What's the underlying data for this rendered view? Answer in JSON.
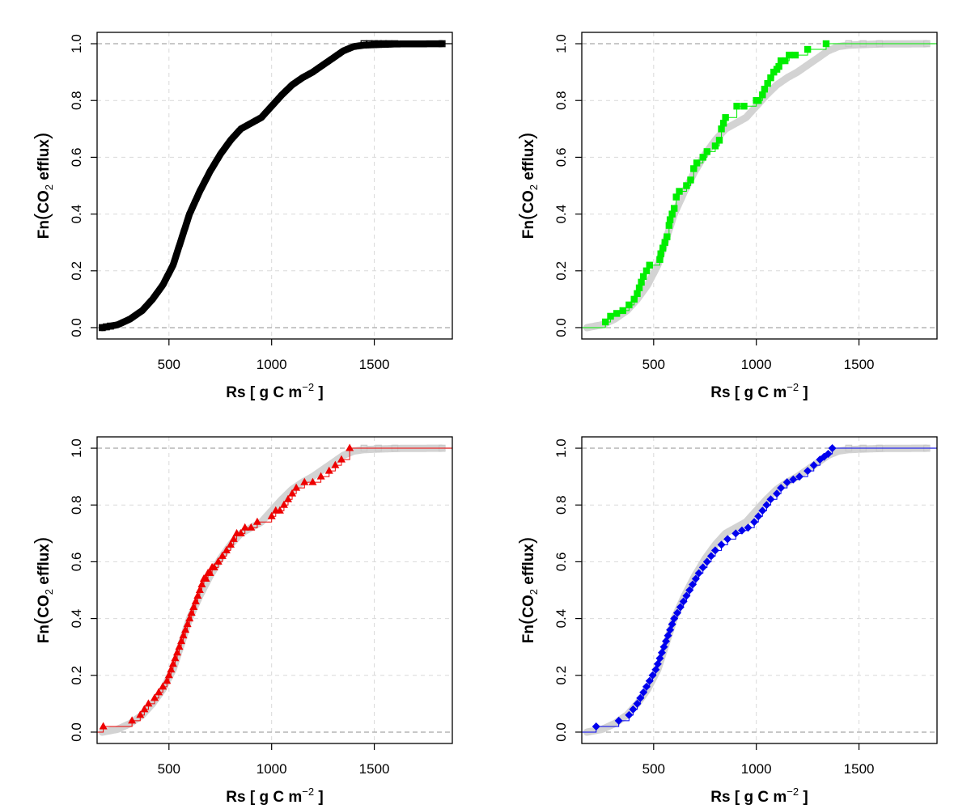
{
  "chart_data": [
    {
      "type": "step",
      "marker": "open-square",
      "colors": {
        "primary": "#000000",
        "background": "#d3d3d3"
      },
      "show_background_ecdf": false,
      "xlim": [
        150,
        1880
      ],
      "ylim": [
        0,
        1
      ],
      "xticks": [
        500,
        1000,
        1500
      ],
      "yticks": [
        0.0,
        0.2,
        0.4,
        0.6,
        0.8,
        1.0
      ],
      "xtick_labels": [
        "500",
        "1000",
        "1500"
      ],
      "ytick_labels": [
        "0.0",
        "0.2",
        "0.4",
        "0.6",
        "0.8",
        "1.0"
      ],
      "xlabel": {
        "prefix": "Rs [ g C m",
        "exponent": "−2",
        "suffix": " ]"
      },
      "ylabel": {
        "prefix": "Fn",
        "open": "(",
        "main": "CO",
        "sub": "2",
        "rest": " efflux",
        "close": ")"
      },
      "grid": true,
      "ecdf_x": [
        175,
        250,
        310,
        370,
        420,
        470,
        520,
        560,
        600,
        650,
        700,
        750,
        800,
        850,
        900,
        950,
        1000,
        1050,
        1100,
        1150,
        1200,
        1250,
        1300,
        1350,
        1400,
        1450,
        1520,
        1600,
        1830
      ],
      "ecdf_y": [
        0.0,
        0.01,
        0.03,
        0.06,
        0.1,
        0.15,
        0.22,
        0.31,
        0.4,
        0.48,
        0.55,
        0.61,
        0.66,
        0.7,
        0.72,
        0.74,
        0.78,
        0.82,
        0.855,
        0.88,
        0.9,
        0.925,
        0.95,
        0.975,
        0.99,
        0.995,
        0.997,
        0.999,
        1.0
      ]
    },
    {
      "type": "step",
      "marker": "filled-square",
      "colors": {
        "primary": "#00ee00",
        "background": "#d3d3d3"
      },
      "show_background_ecdf": true,
      "xlim": [
        150,
        1880
      ],
      "ylim": [
        0,
        1
      ],
      "xticks": [
        500,
        1000,
        1500
      ],
      "yticks": [
        0.0,
        0.2,
        0.4,
        0.6,
        0.8,
        1.0
      ],
      "xtick_labels": [
        "500",
        "1000",
        "1500"
      ],
      "ytick_labels": [
        "0.0",
        "0.2",
        "0.4",
        "0.6",
        "0.8",
        "1.0"
      ],
      "xlabel": {
        "prefix": "Rs [ g C m",
        "exponent": "−2",
        "suffix": " ]"
      },
      "ylabel": {
        "prefix": "Fn",
        "open": "(",
        "main": "CO",
        "sub": "2",
        "rest": " efflux",
        "close": ")"
      },
      "grid": true,
      "x": [
        265,
        290,
        320,
        350,
        380,
        405,
        420,
        430,
        440,
        450,
        465,
        480,
        530,
        535,
        545,
        555,
        565,
        575,
        580,
        590,
        600,
        610,
        625,
        660,
        680,
        695,
        710,
        740,
        760,
        800,
        820,
        830,
        840,
        850,
        905,
        940,
        1000,
        1010,
        1030,
        1040,
        1055,
        1070,
        1085,
        1100,
        1110,
        1120,
        1140,
        1160,
        1190,
        1250,
        1340
      ],
      "y": [
        0.02,
        0.04,
        0.05,
        0.06,
        0.08,
        0.1,
        0.12,
        0.14,
        0.16,
        0.18,
        0.2,
        0.22,
        0.24,
        0.26,
        0.28,
        0.3,
        0.32,
        0.36,
        0.38,
        0.4,
        0.42,
        0.46,
        0.48,
        0.5,
        0.52,
        0.56,
        0.58,
        0.6,
        0.62,
        0.64,
        0.66,
        0.7,
        0.72,
        0.74,
        0.78,
        0.78,
        0.8,
        0.8,
        0.82,
        0.84,
        0.86,
        0.88,
        0.9,
        0.91,
        0.92,
        0.94,
        0.94,
        0.96,
        0.96,
        0.98,
        1.0
      ]
    },
    {
      "type": "step",
      "marker": "filled-triangle",
      "colors": {
        "primary": "#ee0000",
        "background": "#d3d3d3"
      },
      "show_background_ecdf": true,
      "xlim": [
        150,
        1880
      ],
      "ylim": [
        0,
        1
      ],
      "xticks": [
        500,
        1000,
        1500
      ],
      "yticks": [
        0.0,
        0.2,
        0.4,
        0.6,
        0.8,
        1.0
      ],
      "xtick_labels": [
        "500",
        "1000",
        "1500"
      ],
      "ytick_labels": [
        "0.0",
        "0.2",
        "0.4",
        "0.6",
        "0.8",
        "1.0"
      ],
      "xlabel": {
        "prefix": "Rs [ g C m",
        "exponent": "−2",
        "suffix": " ]"
      },
      "ylabel": {
        "prefix": "Fn",
        "open": "(",
        "main": "CO",
        "sub": "2",
        "rest": " efflux",
        "close": ")"
      },
      "grid": true,
      "x": [
        180,
        320,
        360,
        380,
        400,
        430,
        450,
        470,
        490,
        500,
        510,
        520,
        530,
        540,
        550,
        560,
        570,
        580,
        590,
        600,
        610,
        620,
        630,
        640,
        650,
        660,
        670,
        680,
        690,
        700,
        710,
        720,
        740,
        760,
        780,
        800,
        815,
        830,
        850,
        870,
        900,
        930,
        1000,
        1020,
        1040,
        1060,
        1080,
        1100,
        1120,
        1160,
        1200,
        1240,
        1280,
        1310,
        1340,
        1380
      ],
      "y": [
        0.02,
        0.04,
        0.06,
        0.08,
        0.1,
        0.12,
        0.14,
        0.16,
        0.18,
        0.2,
        0.22,
        0.24,
        0.26,
        0.28,
        0.3,
        0.32,
        0.34,
        0.36,
        0.38,
        0.4,
        0.42,
        0.44,
        0.46,
        0.48,
        0.5,
        0.52,
        0.54,
        0.54,
        0.56,
        0.56,
        0.58,
        0.58,
        0.6,
        0.62,
        0.64,
        0.66,
        0.68,
        0.7,
        0.7,
        0.72,
        0.72,
        0.74,
        0.76,
        0.78,
        0.78,
        0.8,
        0.82,
        0.84,
        0.86,
        0.88,
        0.88,
        0.9,
        0.92,
        0.94,
        0.96,
        1.0
      ]
    },
    {
      "type": "step",
      "marker": "filled-diamond",
      "colors": {
        "primary": "#0000ee",
        "background": "#d3d3d3"
      },
      "show_background_ecdf": true,
      "xlim": [
        150,
        1880
      ],
      "ylim": [
        0,
        1
      ],
      "xticks": [
        500,
        1000,
        1500
      ],
      "yticks": [
        0.0,
        0.2,
        0.4,
        0.6,
        0.8,
        1.0
      ],
      "xtick_labels": [
        "500",
        "1000",
        "1500"
      ],
      "ytick_labels": [
        "0.0",
        "0.2",
        "0.4",
        "0.6",
        "0.8",
        "1.0"
      ],
      "xlabel": {
        "prefix": "Rs [ g C m",
        "exponent": "−2",
        "suffix": " ]"
      },
      "ylabel": {
        "prefix": "Fn",
        "open": "(",
        "main": "CO",
        "sub": "2",
        "rest": " efflux",
        "close": ")"
      },
      "grid": true,
      "x": [
        220,
        330,
        380,
        400,
        420,
        435,
        450,
        465,
        480,
        495,
        510,
        520,
        530,
        540,
        550,
        560,
        570,
        580,
        590,
        600,
        615,
        630,
        645,
        660,
        675,
        690,
        705,
        720,
        740,
        760,
        780,
        800,
        830,
        860,
        900,
        930,
        960,
        990,
        1010,
        1030,
        1050,
        1070,
        1100,
        1120,
        1150,
        1180,
        1210,
        1250,
        1280,
        1310,
        1330,
        1350,
        1370
      ],
      "y": [
        0.02,
        0.04,
        0.06,
        0.08,
        0.1,
        0.12,
        0.14,
        0.16,
        0.18,
        0.2,
        0.22,
        0.24,
        0.26,
        0.28,
        0.3,
        0.32,
        0.34,
        0.36,
        0.38,
        0.4,
        0.42,
        0.44,
        0.46,
        0.48,
        0.5,
        0.52,
        0.54,
        0.56,
        0.58,
        0.6,
        0.62,
        0.64,
        0.66,
        0.68,
        0.7,
        0.71,
        0.72,
        0.74,
        0.76,
        0.78,
        0.8,
        0.82,
        0.84,
        0.86,
        0.88,
        0.89,
        0.9,
        0.92,
        0.94,
        0.96,
        0.97,
        0.98,
        1.0
      ]
    }
  ]
}
